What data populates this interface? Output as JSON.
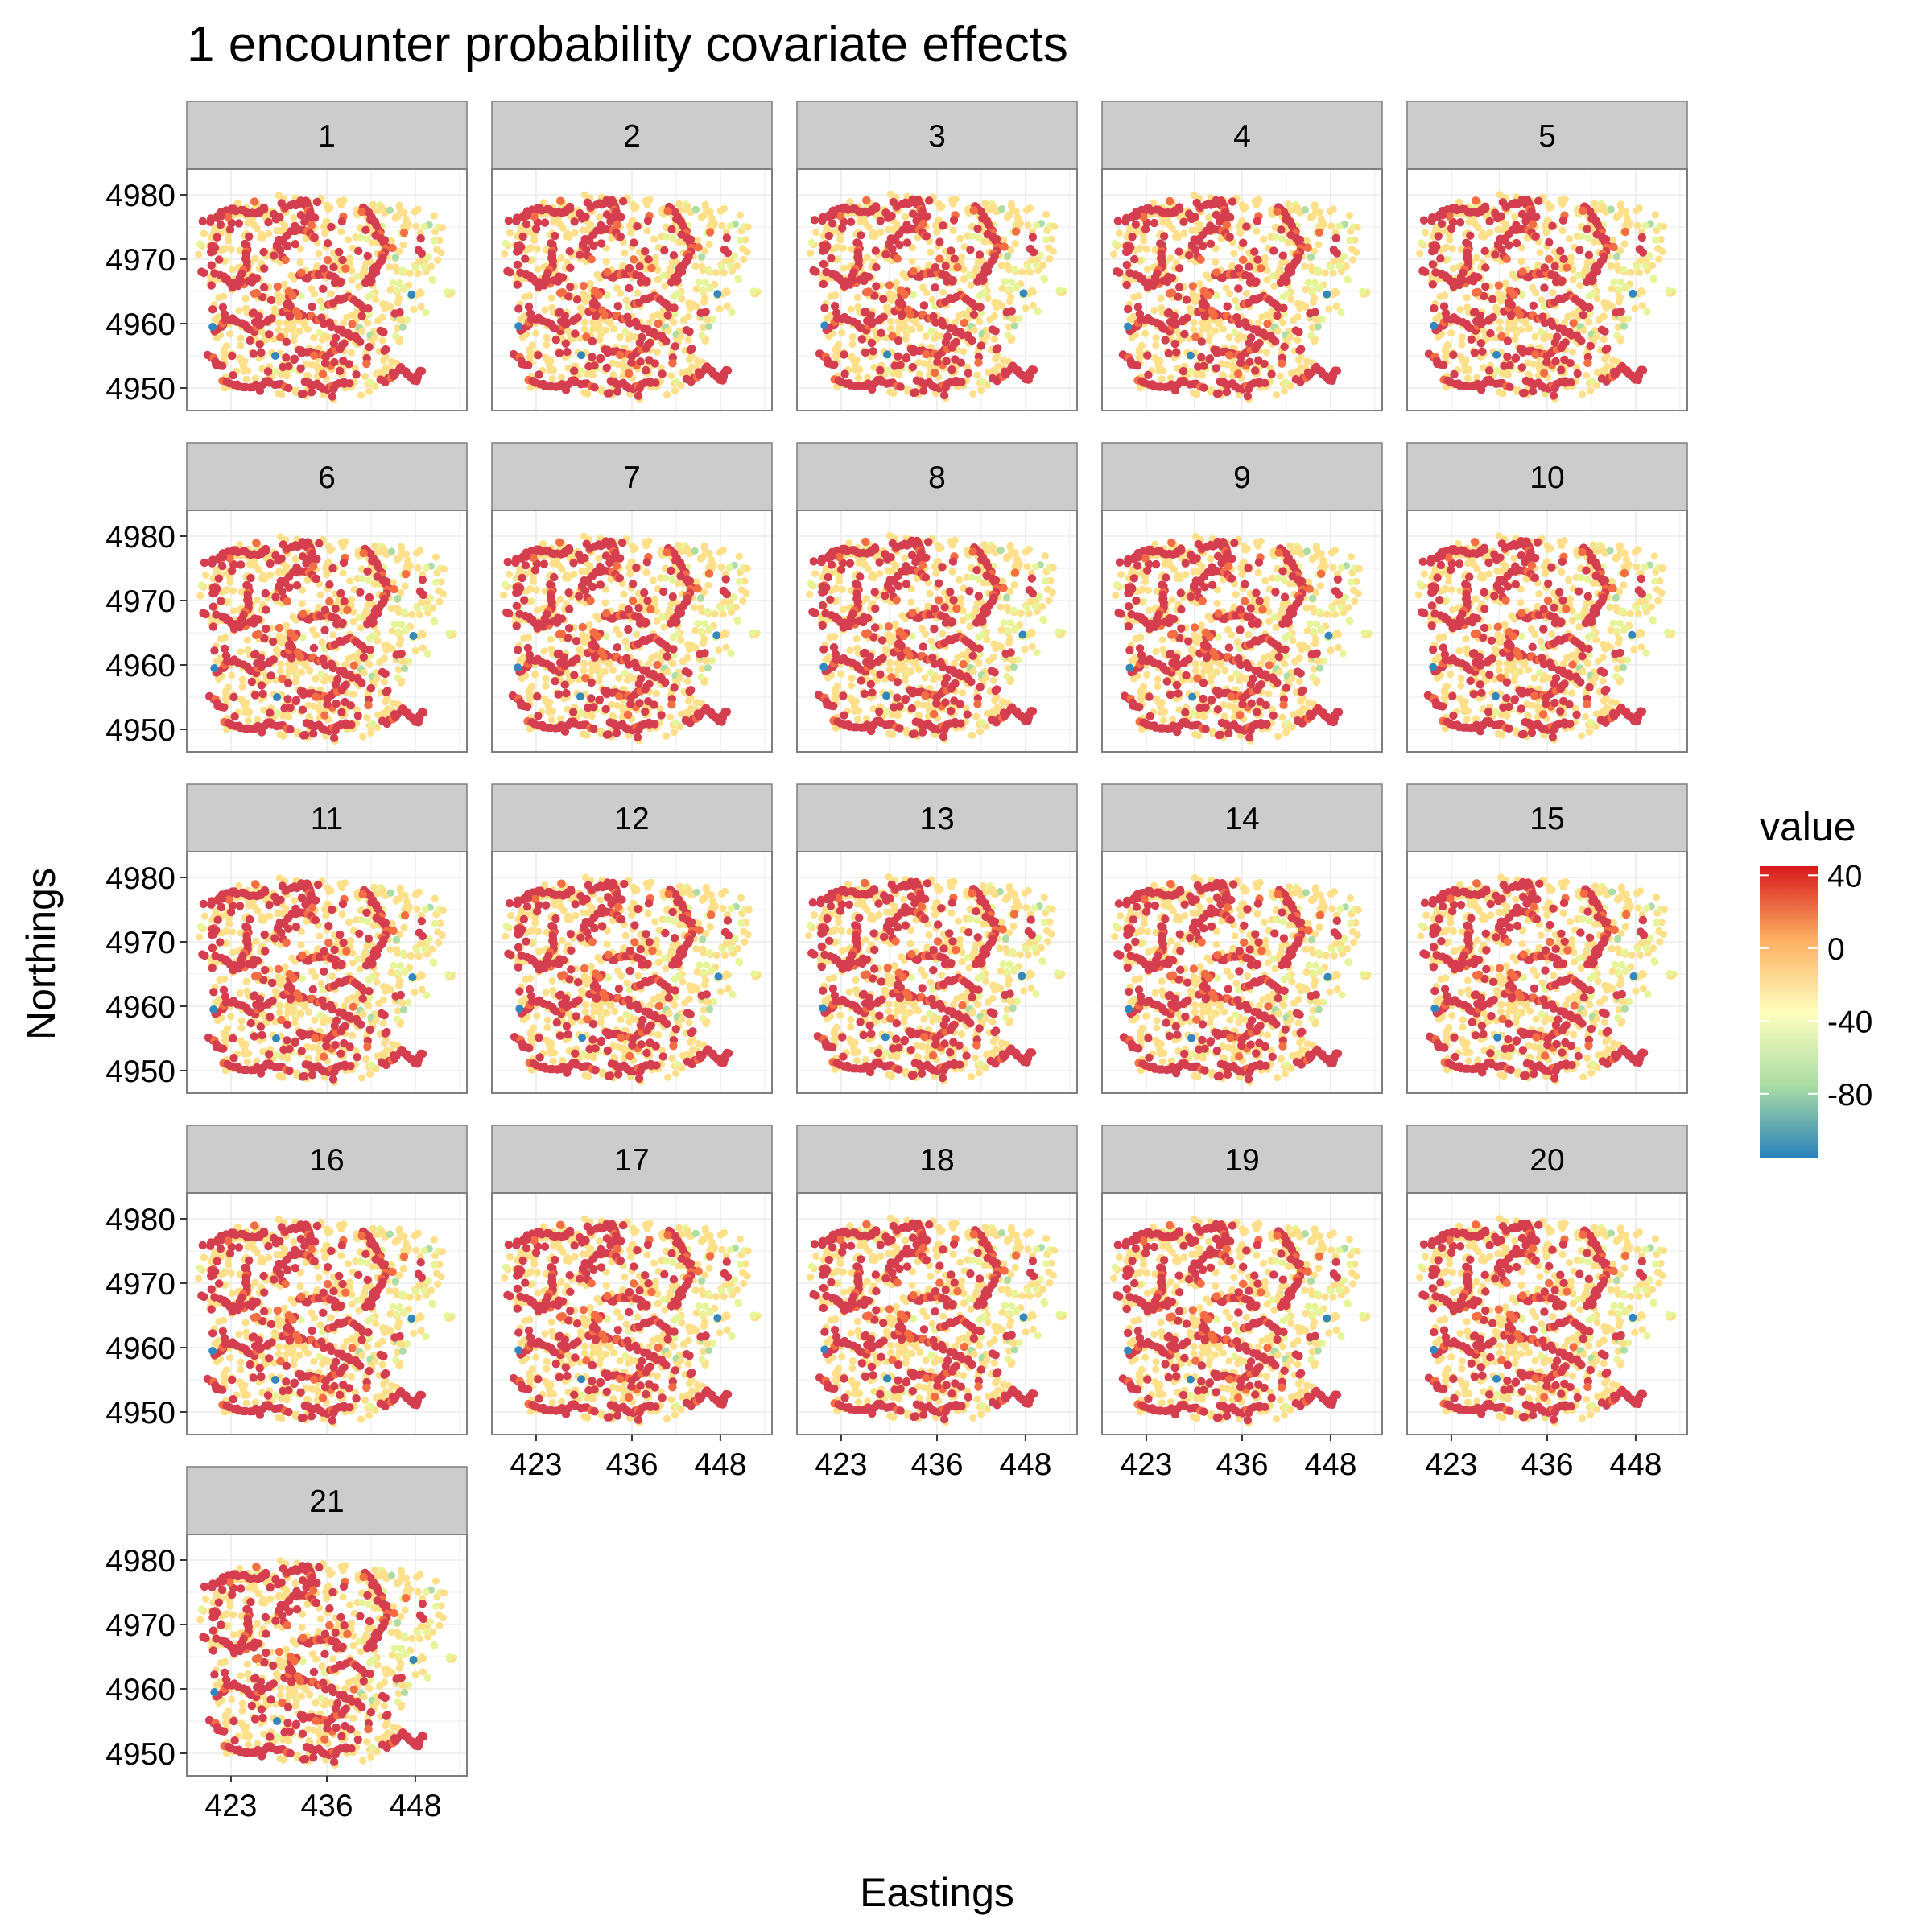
{
  "chart_data": {
    "type": "scatter",
    "title": "1 encounter probability covariate effects",
    "xlabel": "Eastings",
    "ylabel": "Northings",
    "facets": [
      "1",
      "2",
      "3",
      "4",
      "5",
      "6",
      "7",
      "8",
      "9",
      "10",
      "11",
      "12",
      "13",
      "14",
      "15",
      "16",
      "17",
      "18",
      "19",
      "20",
      "21"
    ],
    "x_ticks": [
      423,
      436,
      448
    ],
    "y_ticks": [
      4950,
      4960,
      4970,
      4980
    ],
    "xlim": [
      417,
      455
    ],
    "ylim": [
      4946.5,
      4984
    ],
    "grid": true,
    "legend": {
      "title": "value",
      "position": "right",
      "ticks": [
        40,
        0,
        -40,
        -80
      ],
      "range": [
        -115,
        45
      ],
      "palette": [
        "#2b83ba",
        "#abdda4",
        "#ffffbf",
        "#fdae61",
        "#d7191c"
      ]
    },
    "colors": {
      "high": "#d53e4f",
      "upper": "#f46d43",
      "mid": "#fee08b",
      "low": "#e6f598",
      "lower": "#abdda4",
      "min": "#3288bd",
      "strip": "#cccccc",
      "panel_border": "#7f7f7f"
    }
  }
}
